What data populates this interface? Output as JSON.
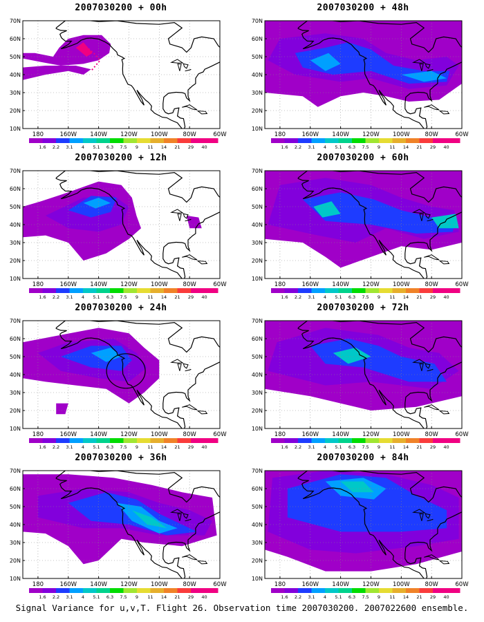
{
  "panels": [
    {
      "title": "2007030200 + 00h",
      "lead": "00h"
    },
    {
      "title": "2007030200 + 48h",
      "lead": "48h"
    },
    {
      "title": "2007030200 + 12h",
      "lead": "12h"
    },
    {
      "title": "2007030200 + 60h",
      "lead": "60h"
    },
    {
      "title": "2007030200 + 24h",
      "lead": "24h"
    },
    {
      "title": "2007030200 + 72h",
      "lead": "72h"
    },
    {
      "title": "2007030200 + 36h",
      "lead": "36h"
    },
    {
      "title": "2007030200 + 84h",
      "lead": "84h"
    }
  ],
  "map": {
    "lat_labels": [
      "10N",
      "20N",
      "30N",
      "40N",
      "50N",
      "60N",
      "70N"
    ],
    "lon_labels": [
      "180",
      "160W",
      "140W",
      "120W",
      "100W",
      "80W",
      "60W"
    ]
  },
  "colorbar": {
    "levels": [
      "1.6",
      "2.2",
      "3.1",
      "4",
      "5.1",
      "6.3",
      "7.5",
      "9",
      "11",
      "14",
      "21",
      "29",
      "40"
    ],
    "colors": [
      "#a000c8",
      "#8200dc",
      "#1e3cff",
      "#00a0ff",
      "#00c8c8",
      "#00d28c",
      "#00dc00",
      "#a0e632",
      "#e6dc32",
      "#e6af2d",
      "#f08228",
      "#fa3c3c",
      "#f00082"
    ]
  },
  "caption": "Signal Variance for u,v,T. Flight 26. Observation time 2007030200. 2007022600 ensemble."
}
